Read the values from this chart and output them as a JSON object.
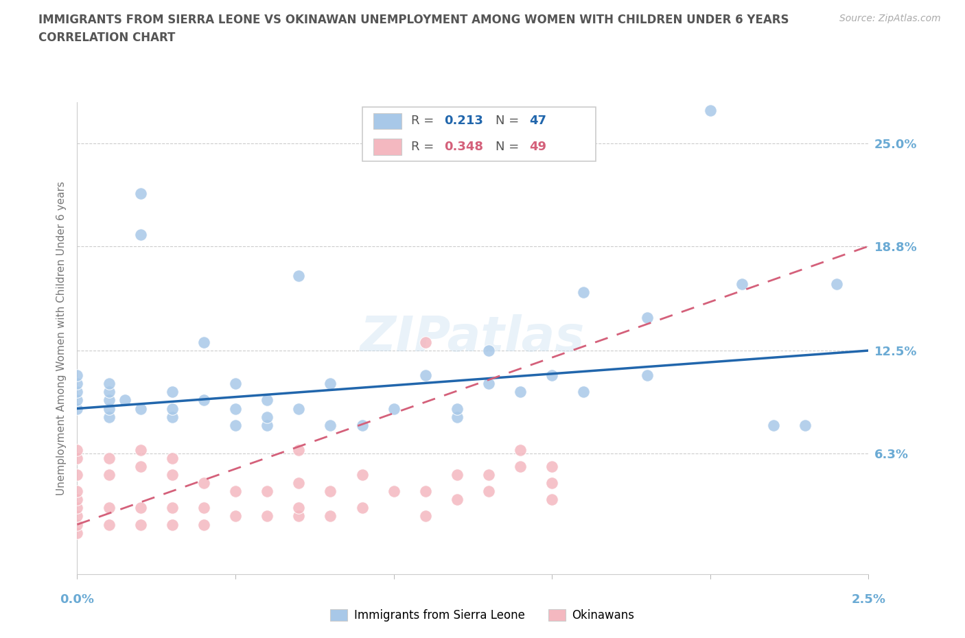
{
  "title_line1": "IMMIGRANTS FROM SIERRA LEONE VS OKINAWAN UNEMPLOYMENT AMONG WOMEN WITH CHILDREN UNDER 6 YEARS",
  "title_line2": "CORRELATION CHART",
  "source_text": "Source: ZipAtlas.com",
  "ylabel": "Unemployment Among Women with Children Under 6 years",
  "ytick_labels": [
    "25.0%",
    "18.8%",
    "12.5%",
    "6.3%"
  ],
  "ytick_values": [
    0.25,
    0.188,
    0.125,
    0.063
  ],
  "xlim": [
    0.0,
    0.025
  ],
  "ylim": [
    -0.01,
    0.275
  ],
  "watermark": "ZIPatlas",
  "legend1_R": "0.213",
  "legend1_N": "47",
  "legend2_R": "0.348",
  "legend2_N": "49",
  "blue_scatter_color": "#a8c8e8",
  "pink_scatter_color": "#f4b8c0",
  "blue_line_color": "#2166ac",
  "pink_line_color": "#d4607a",
  "title_color": "#555555",
  "axis_label_color": "#6aaad4",
  "sierra_leone_x": [
    0.0,
    0.0,
    0.0,
    0.0,
    0.0,
    0.001,
    0.001,
    0.001,
    0.001,
    0.001,
    0.0015,
    0.002,
    0.002,
    0.002,
    0.003,
    0.003,
    0.003,
    0.004,
    0.004,
    0.005,
    0.005,
    0.005,
    0.006,
    0.006,
    0.006,
    0.007,
    0.007,
    0.008,
    0.008,
    0.009,
    0.01,
    0.011,
    0.012,
    0.012,
    0.013,
    0.013,
    0.014,
    0.015,
    0.016,
    0.016,
    0.018,
    0.018,
    0.02,
    0.021,
    0.022,
    0.023,
    0.024
  ],
  "sierra_leone_y": [
    0.09,
    0.095,
    0.1,
    0.105,
    0.11,
    0.085,
    0.09,
    0.095,
    0.1,
    0.105,
    0.095,
    0.195,
    0.22,
    0.09,
    0.085,
    0.09,
    0.1,
    0.095,
    0.13,
    0.08,
    0.09,
    0.105,
    0.08,
    0.085,
    0.095,
    0.09,
    0.17,
    0.08,
    0.105,
    0.08,
    0.09,
    0.11,
    0.085,
    0.09,
    0.105,
    0.125,
    0.1,
    0.11,
    0.1,
    0.16,
    0.11,
    0.145,
    0.27,
    0.165,
    0.08,
    0.08,
    0.165
  ],
  "okinawan_x": [
    0.0,
    0.0,
    0.0,
    0.0,
    0.0,
    0.0,
    0.0,
    0.0,
    0.0,
    0.001,
    0.001,
    0.001,
    0.001,
    0.002,
    0.002,
    0.002,
    0.002,
    0.003,
    0.003,
    0.003,
    0.003,
    0.004,
    0.004,
    0.004,
    0.005,
    0.005,
    0.006,
    0.006,
    0.007,
    0.007,
    0.007,
    0.007,
    0.008,
    0.008,
    0.009,
    0.009,
    0.01,
    0.011,
    0.011,
    0.011,
    0.012,
    0.012,
    0.013,
    0.013,
    0.014,
    0.014,
    0.015,
    0.015,
    0.015
  ],
  "okinawan_y": [
    0.015,
    0.02,
    0.025,
    0.03,
    0.035,
    0.04,
    0.05,
    0.06,
    0.065,
    0.02,
    0.03,
    0.05,
    0.06,
    0.02,
    0.03,
    0.055,
    0.065,
    0.02,
    0.03,
    0.05,
    0.06,
    0.02,
    0.03,
    0.045,
    0.025,
    0.04,
    0.025,
    0.04,
    0.025,
    0.03,
    0.045,
    0.065,
    0.025,
    0.04,
    0.03,
    0.05,
    0.04,
    0.025,
    0.04,
    0.13,
    0.035,
    0.05,
    0.04,
    0.05,
    0.055,
    0.065,
    0.035,
    0.045,
    0.055
  ],
  "sl_line_x0": 0.0,
  "sl_line_y0": 0.09,
  "sl_line_x1": 0.025,
  "sl_line_y1": 0.125,
  "ok_line_x0": 0.0,
  "ok_line_y0": 0.02,
  "ok_line_x1": 0.025,
  "ok_line_y1": 0.188
}
